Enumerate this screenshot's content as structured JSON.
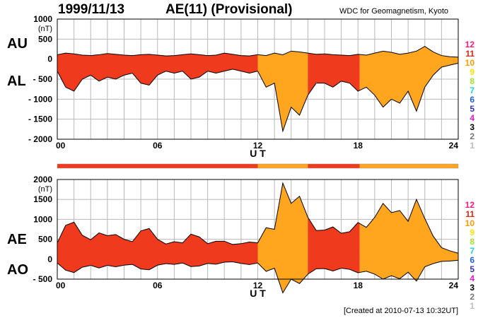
{
  "header": {
    "date": "1999/11/13",
    "title": "AE(11) (Provisional)",
    "source": "WDC for Geomagnetism, Kyoto"
  },
  "footer": {
    "created": "[Created at 2010-07-13 10:32UT]"
  },
  "colors": {
    "segment_palette": {
      "11": "#f03a1e",
      "10": "#ffa61e"
    },
    "grid": "#b8b8b8",
    "trace": "#000000"
  },
  "station_scale": {
    "labels": [
      "12",
      "11",
      "10",
      "9",
      "8",
      "7",
      "6",
      "5",
      "4",
      "3",
      "2",
      "1"
    ],
    "colors": [
      "#ff1a7a",
      "#e8240e",
      "#ff9a00",
      "#ffe100",
      "#9de628",
      "#16d6d6",
      "#1a62e8",
      "#3333bb",
      "#d61ad6",
      "#000000",
      "#777777",
      "#bbbbbb"
    ]
  },
  "station_segments": [
    {
      "from": 0,
      "to": 12,
      "count": "11"
    },
    {
      "from": 12,
      "to": 15,
      "count": "10"
    },
    {
      "from": 15,
      "to": 18.1,
      "count": "11"
    },
    {
      "from": 18.1,
      "to": 24,
      "count": "10"
    }
  ],
  "chart_data": [
    {
      "type": "area",
      "x_unit": "hours UT",
      "xlim": [
        0,
        24
      ],
      "ylim": [
        -2000,
        1000
      ],
      "xticks": [
        "00",
        "06",
        "12",
        "18",
        "24"
      ],
      "yticks": [
        "1000",
        "500",
        "0",
        "- 500",
        "- 1000",
        "- 1500",
        "- 2000"
      ],
      "yunit": "(nT)",
      "xlabel": "U T",
      "labels_left": [
        "AU",
        "AL"
      ],
      "series": [
        {
          "name": "AU",
          "x": [
            0,
            0.5,
            1,
            1.5,
            2,
            2.5,
            3,
            3.5,
            4,
            4.5,
            5,
            5.5,
            6,
            6.5,
            7,
            7.5,
            8,
            8.5,
            9,
            9.5,
            10,
            10.5,
            11,
            11.5,
            12,
            12.5,
            13,
            13.5,
            14,
            14.5,
            15,
            15.5,
            16,
            16.5,
            17,
            17.5,
            18,
            18.5,
            19,
            19.5,
            20,
            20.5,
            21,
            21.5,
            22,
            22.5,
            23,
            23.5,
            24
          ],
          "values": [
            110,
            150,
            130,
            100,
            90,
            110,
            140,
            120,
            100,
            90,
            110,
            120,
            100,
            80,
            90,
            110,
            130,
            110,
            90,
            100,
            150,
            120,
            90,
            80,
            110,
            90,
            150,
            110,
            200,
            180,
            150,
            120,
            130,
            110,
            100,
            90,
            120,
            100,
            150,
            200,
            170,
            120,
            150,
            200,
            320,
            180,
            90,
            60,
            50
          ]
        },
        {
          "name": "AL",
          "x": [
            0,
            0.5,
            1,
            1.5,
            2,
            2.5,
            3,
            3.5,
            4,
            4.5,
            5,
            5.5,
            6,
            6.5,
            7,
            7.5,
            8,
            8.5,
            9,
            9.5,
            10,
            10.5,
            11,
            11.5,
            12,
            12.5,
            13,
            13.5,
            14,
            14.5,
            15,
            15.5,
            16,
            16.5,
            17,
            17.5,
            18,
            18.5,
            19,
            19.5,
            20,
            20.5,
            21,
            21.5,
            22,
            22.5,
            23,
            23.5,
            24
          ],
          "values": [
            -300,
            -700,
            -800,
            -500,
            -400,
            -550,
            -450,
            -500,
            -400,
            -350,
            -600,
            -650,
            -400,
            -300,
            -350,
            -300,
            -500,
            -450,
            -300,
            -350,
            -300,
            -250,
            -300,
            -350,
            -300,
            -700,
            -600,
            -1800,
            -1200,
            -1400,
            -900,
            -600,
            -600,
            -700,
            -550,
            -600,
            -800,
            -700,
            -900,
            -1200,
            -1000,
            -1100,
            -800,
            -1300,
            -700,
            -400,
            -200,
            -150,
            -100
          ]
        }
      ]
    },
    {
      "type": "area",
      "x_unit": "hours UT",
      "xlim": [
        0,
        24
      ],
      "ylim": [
        -500,
        2000
      ],
      "xticks": [
        "00",
        "06",
        "12",
        "18",
        "24"
      ],
      "yticks": [
        "2000",
        "1500",
        "1000",
        "500",
        "0",
        "- 500"
      ],
      "yunit": "(nT)",
      "xlabel": "U T",
      "labels_left": [
        "AE",
        "AO"
      ],
      "series": [
        {
          "name": "AE",
          "x": [
            0,
            0.5,
            1,
            1.5,
            2,
            2.5,
            3,
            3.5,
            4,
            4.5,
            5,
            5.5,
            6,
            6.5,
            7,
            7.5,
            8,
            8.5,
            9,
            9.5,
            10,
            10.5,
            11,
            11.5,
            12,
            12.5,
            13,
            13.5,
            14,
            14.5,
            15,
            15.5,
            16,
            16.5,
            17,
            17.5,
            18,
            18.5,
            19,
            19.5,
            20,
            20.5,
            21,
            21.5,
            22,
            22.5,
            23,
            23.5,
            24
          ],
          "values": [
            410,
            850,
            930,
            600,
            490,
            660,
            590,
            620,
            500,
            440,
            710,
            770,
            500,
            380,
            440,
            410,
            630,
            560,
            390,
            450,
            450,
            370,
            390,
            430,
            410,
            790,
            750,
            1910,
            1400,
            1580,
            1050,
            720,
            730,
            810,
            650,
            690,
            920,
            800,
            1050,
            1400,
            1170,
            1220,
            950,
            1500,
            1020,
            580,
            290,
            210,
            150
          ]
        },
        {
          "name": "AO",
          "x": [
            0,
            0.5,
            1,
            1.5,
            2,
            2.5,
            3,
            3.5,
            4,
            4.5,
            5,
            5.5,
            6,
            6.5,
            7,
            7.5,
            8,
            8.5,
            9,
            9.5,
            10,
            10.5,
            11,
            11.5,
            12,
            12.5,
            13,
            13.5,
            14,
            14.5,
            15,
            15.5,
            16,
            16.5,
            17,
            17.5,
            18,
            18.5,
            19,
            19.5,
            20,
            20.5,
            21,
            21.5,
            22,
            22.5,
            23,
            23.5,
            24
          ],
          "values": [
            -95,
            -275,
            -335,
            -200,
            -155,
            -220,
            -155,
            -190,
            -150,
            -130,
            -245,
            -265,
            -150,
            -110,
            -130,
            -95,
            -185,
            -170,
            -105,
            -125,
            -75,
            -65,
            -105,
            -135,
            -95,
            -305,
            -225,
            -845,
            -500,
            -610,
            -375,
            -240,
            -235,
            -295,
            -225,
            -255,
            -340,
            -300,
            -375,
            -500,
            -415,
            -490,
            -325,
            -550,
            -190,
            -110,
            -55,
            -45,
            -25
          ]
        }
      ]
    }
  ]
}
